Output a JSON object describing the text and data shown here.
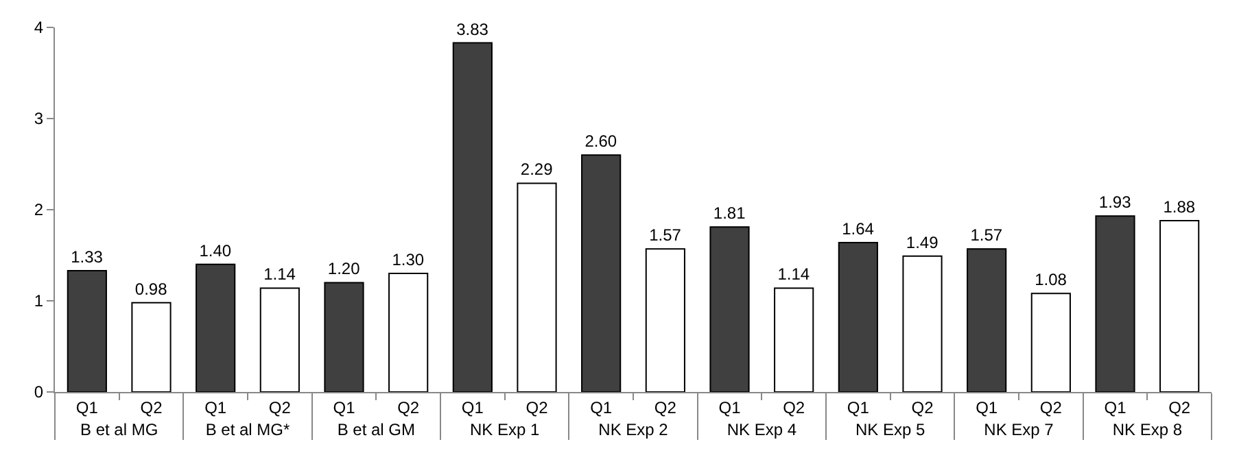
{
  "chart_data": {
    "type": "bar",
    "categories": [
      "B et al MG",
      "B et al MG*",
      "B et al GM",
      "NK Exp 1",
      "NK Exp 2",
      "NK Exp 4",
      "NK Exp 5",
      "NK Exp 7",
      "NK Exp 8"
    ],
    "series": [
      {
        "name": "Q1",
        "color": "#404040",
        "values": [
          1.33,
          1.4,
          1.2,
          3.83,
          2.6,
          1.81,
          1.64,
          1.57,
          1.93
        ],
        "value_labels": [
          "1.33",
          "1.40",
          "1.20",
          "3.83",
          "2.60",
          "1.81",
          "1.64",
          "1.57",
          "1.93"
        ]
      },
      {
        "name": "Q2",
        "color": "#ffffff",
        "values": [
          0.98,
          1.14,
          1.3,
          2.29,
          1.57,
          1.14,
          1.49,
          1.08,
          1.88
        ],
        "value_labels": [
          "0.98",
          "1.14",
          "1.30",
          "2.29",
          "1.57",
          "1.14",
          "1.49",
          "1.08",
          "1.88"
        ]
      }
    ],
    "ylim": [
      0,
      4
    ],
    "yticks": [
      0,
      1,
      2,
      3,
      4
    ],
    "grid": false,
    "legend": false
  }
}
